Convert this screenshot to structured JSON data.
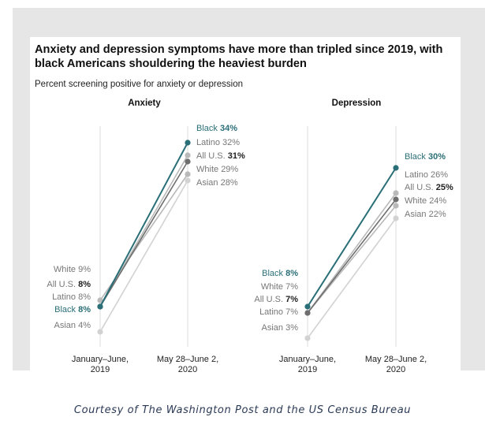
{
  "title": "Anxiety and depression symptoms have more than tripled since 2019, with black Americans shouldering the heaviest burden",
  "subtitle": "Percent screening positive for anxiety or depression",
  "caption": "Courtesy of The Washington Post and the US Census Bureau",
  "colors": {
    "Black": "#2a6f77",
    "All U.S.": "#6e6e6e",
    "Latino": "#b9b9b9",
    "White": "#b9b9b9",
    "Asian": "#d2d2d2"
  },
  "chart_data": [
    {
      "type": "line",
      "title": "Anxiety",
      "x": [
        "January–June, 2019",
        "May 28–June 2, 2020"
      ],
      "ylim": [
        0,
        40
      ],
      "series": [
        {
          "name": "Asian",
          "values": [
            4,
            28
          ]
        },
        {
          "name": "White",
          "values": [
            9,
            29
          ]
        },
        {
          "name": "Latino",
          "values": [
            8,
            32
          ]
        },
        {
          "name": "All U.S.",
          "values": [
            8,
            31
          ]
        },
        {
          "name": "Black",
          "values": [
            8,
            34
          ]
        }
      ]
    },
    {
      "type": "line",
      "title": "Depression",
      "x": [
        "January–June, 2019",
        "May 28–June 2, 2020"
      ],
      "ylim": [
        0,
        40
      ],
      "series": [
        {
          "name": "Asian",
          "values": [
            3,
            22
          ]
        },
        {
          "name": "White",
          "values": [
            7,
            24
          ]
        },
        {
          "name": "Latino",
          "values": [
            7,
            26
          ]
        },
        {
          "name": "All U.S.",
          "values": [
            7,
            25
          ]
        },
        {
          "name": "Black",
          "values": [
            8,
            30
          ]
        }
      ]
    }
  ]
}
